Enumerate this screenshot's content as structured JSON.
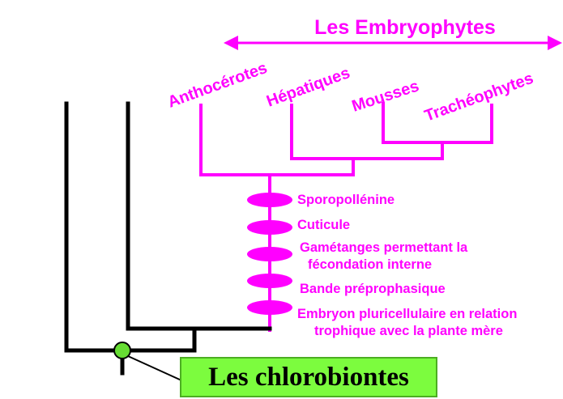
{
  "title": "Les Embryophytes",
  "taxa": [
    "Anthocérotes",
    "Hépatiques",
    "Mousses",
    "Trachéophytes"
  ],
  "characters": [
    [
      "Sporopollénine"
    ],
    [
      "Cuticule"
    ],
    [
      "Gamétanges permettant la",
      "fécondation interne"
    ],
    [
      "Bande préprophasique"
    ],
    [
      "Embryon pluricellulaire en relation",
      "trophique avec la plante mère"
    ]
  ],
  "root_label": "Les chlorobiontes",
  "colors": {
    "accent": "#ff00ff",
    "tree": "#000000",
    "root_node": "#66dd33",
    "label_box": "#7cfc3e"
  }
}
